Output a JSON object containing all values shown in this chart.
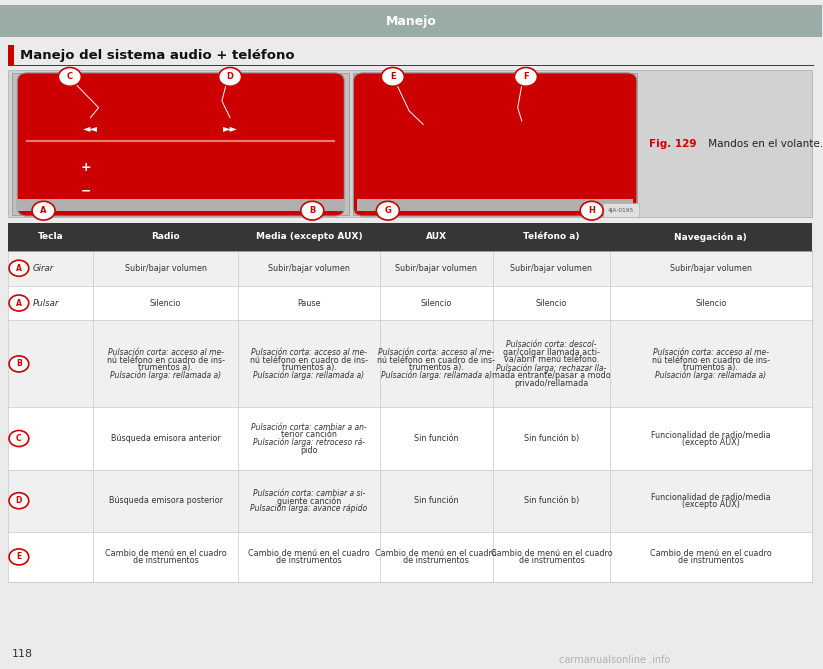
{
  "page_bg": "#ebebeb",
  "content_bg": "#ffffff",
  "header_text": "Manejo",
  "header_bg": "#9aaba8",
  "header_text_color": "#ffffff",
  "section_title": "Manejo del sistema audio + teléfono",
  "red_color": "#cc0000",
  "fig_caption_bold": "Fig. 129",
  "fig_caption_rest": " Mandos en el volante.",
  "table_header_bg": "#363636",
  "table_header_text_color": "#ffffff",
  "table_even_bg": "#f0f0f0",
  "table_odd_bg": "#ffffff",
  "table_border_color": "#c8c8c8",
  "col_headers": [
    "Tecla",
    "Radio",
    "Media (excepto AUX)",
    "AUX",
    "Teléfono a)",
    "Navegación a)"
  ],
  "rows": [
    {
      "label": "A",
      "extra": "Girar",
      "cells": [
        "Subir/bajar volumen",
        "Subir/bajar volumen",
        "Subir/bajar volumen",
        "Subir/bajar volumen",
        "Subir/bajar volumen"
      ]
    },
    {
      "label": "A",
      "extra": "Pulsar",
      "cells": [
        "Silencio",
        "Pause",
        "Silencio",
        "Silencio",
        "Silencio"
      ]
    },
    {
      "label": "B",
      "extra": "",
      "cells": [
        "i|Pulsación corta:|n acceso al me-\nnú teléfono en cuadro de ins-\ntrumentos a).\ni|Pulsación larga:|n rellamada a)",
        "i|Pulsación corta:|n acceso al me-\nnú teléfono en cuadro de ins-\ntrumentos a).\ni|Pulsación larga:|n rellamada a)",
        "i|Pulsación corta:|n acceso al me-\nnú teléfono en cuadro de ins-\ntrumentos a).\ni|Pulsación larga:|n rellamada a)",
        "i|Pulsación corta:|n descol-\ngar/colgar llamada acti-\nva/abrir menú teléfono.\ni|Pulsación larga:|n rechazar lla-\nmada entrante/pasar a modo\nprivado/rellamada",
        "i|Pulsación corta:|n acceso al me-\nnú teléfono en cuadro de ins-\ntrumentos a).\ni|Pulsación larga:|n rellamada a)"
      ]
    },
    {
      "label": "C",
      "extra": "",
      "cells": [
        "Búsqueda emisora anterior",
        "i|Pulsación corta:|n cambiar a an-\nterior canción\ni|Pulsación larga:|n retroceso rá-\npido",
        "Sin función",
        "Sin función b)",
        "Funcionalidad de radio/media\n(excepto AUX)"
      ]
    },
    {
      "label": "D",
      "extra": "",
      "cells": [
        "Búsqueda emisora posterior",
        "i|Pulsación corta:|n cambiar a si-\nguiente canción\ni|Pulsación larga:|n avance rápido",
        "Sin función",
        "Sin función b)",
        "Funcionalidad de radio/media\n(excepto AUX)"
      ]
    },
    {
      "label": "E",
      "extra": "",
      "cells": [
        "Cambio de menú en el cuadro\nde instrumentos",
        "Cambio de menú en el cuadro\nde instrumentos",
        "Cambio de menú en el cuadro\nde instrumentos",
        "Cambio de menú en el cuadro\nde instrumentos",
        "Cambio de menú en el cuadro\nde instrumentos"
      ]
    }
  ],
  "page_number": "118",
  "watermark": "carmanualsonline .info"
}
